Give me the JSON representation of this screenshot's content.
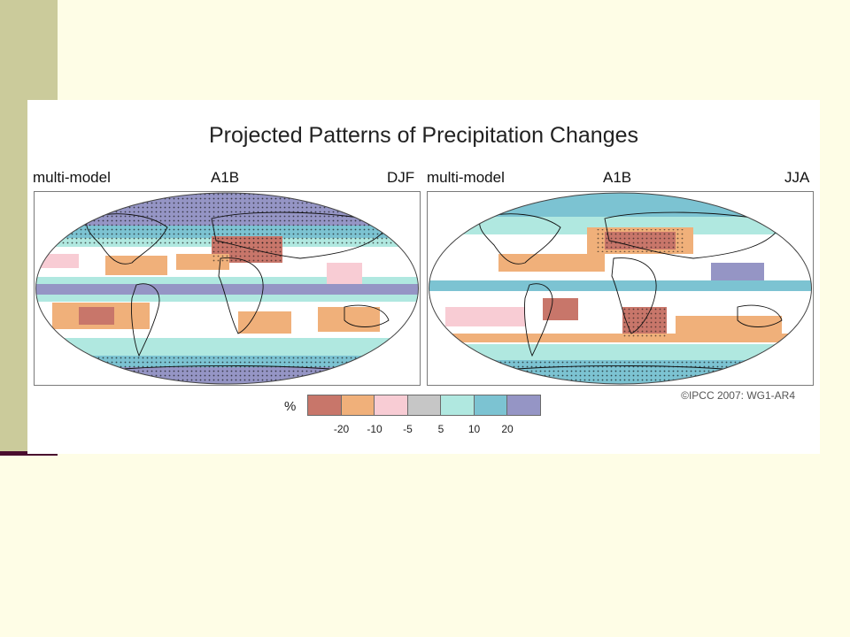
{
  "figure": {
    "title": "Projected Patterns of Precipitation Changes",
    "copyright": "©IPCC 2007: WG1-AR4",
    "panels": [
      {
        "model": "multi-model",
        "scenario": "A1B",
        "season": "DJF"
      },
      {
        "model": "multi-model",
        "scenario": "A1B",
        "season": "JJA"
      }
    ],
    "colorbar": {
      "unit": "%",
      "colors": [
        "#c8766a",
        "#f0b07a",
        "#f8ccd4",
        "#c6c6c6",
        "#b0e8e0",
        "#7cc3d2",
        "#9595c5"
      ],
      "ticks": [
        "-20",
        "-10",
        "-5",
        "5",
        "10",
        "20"
      ]
    }
  },
  "colors": {
    "background": "#fefde6",
    "sidebar": "#cbcb9b",
    "sidebar_accent": "#4a0d2e"
  }
}
